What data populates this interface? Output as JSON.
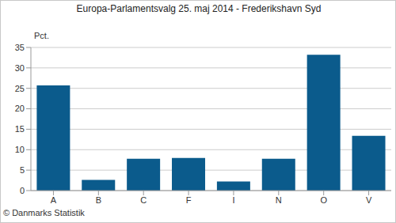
{
  "chart_data": {
    "type": "bar",
    "title": "Europa-Parlamentsvalg 25. maj 2014 - Frederikshavn Syd",
    "y_label": "Pct.",
    "annotation": "© Danmarks Statistik",
    "categories": [
      "A",
      "B",
      "C",
      "F",
      "I",
      "N",
      "O",
      "V"
    ],
    "values": [
      25.7,
      2.6,
      7.8,
      8.0,
      2.2,
      7.8,
      33.2,
      13.4
    ],
    "color": "#0b5b8c",
    "ylim": [
      0,
      35
    ],
    "yticks": [
      0,
      5,
      10,
      15,
      20,
      25,
      30,
      35
    ],
    "grid": true
  }
}
